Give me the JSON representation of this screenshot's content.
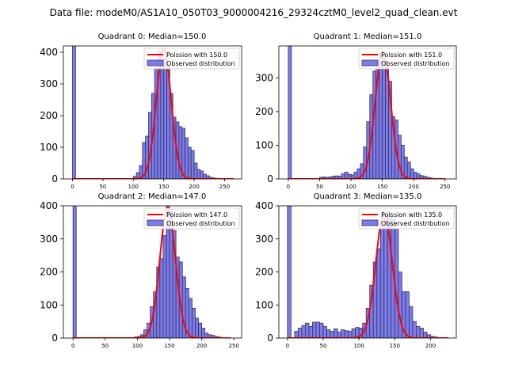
{
  "figure": {
    "suptitle": "Data file: modeM0/AS1A10_050T03_9000004216_29324cztM0_level2_quad_clean.evt"
  },
  "colors": {
    "bar_fill": "#7b7bea",
    "bar_edge": "#33335c",
    "poisson_line": "#ff0000",
    "axis": "#000000"
  },
  "chart_data": [
    {
      "type": "bar",
      "title": "Quadrant 0: Median=150.0",
      "xlim": [
        -15,
        278
      ],
      "ylim": [
        0,
        420
      ],
      "xticks": [
        0,
        50,
        100,
        150,
        200,
        250
      ],
      "yticks": [
        0,
        100,
        200,
        300,
        400
      ],
      "bin_width": 5,
      "bins": [
        [
          0,
          420
        ],
        [
          100,
          8
        ],
        [
          105,
          20
        ],
        [
          110,
          42
        ],
        [
          115,
          115
        ],
        [
          120,
          135
        ],
        [
          125,
          210
        ],
        [
          130,
          270
        ],
        [
          135,
          350
        ],
        [
          140,
          405
        ],
        [
          145,
          375
        ],
        [
          150,
          385
        ],
        [
          155,
          360
        ],
        [
          160,
          270
        ],
        [
          165,
          195
        ],
        [
          170,
          180
        ],
        [
          175,
          165
        ],
        [
          180,
          160
        ],
        [
          185,
          130
        ],
        [
          190,
          100
        ],
        [
          195,
          90
        ],
        [
          200,
          50
        ],
        [
          205,
          30
        ],
        [
          210,
          25
        ],
        [
          215,
          15
        ],
        [
          220,
          10
        ],
        [
          225,
          5
        ],
        [
          230,
          3
        ],
        [
          235,
          2
        ]
      ],
      "poisson": {
        "mean": 150.0,
        "peak": 410,
        "xmin": 0,
        "xmax": 265
      },
      "legend": [
        "Poission with 150.0",
        "Observed distribution"
      ]
    },
    {
      "type": "bar",
      "title": "Quadrant 1: Median=151.0",
      "xlim": [
        -15,
        268
      ],
      "ylim": [
        0,
        395
      ],
      "xticks": [
        0,
        50,
        100,
        150,
        200,
        250
      ],
      "yticks": [
        0,
        100,
        200,
        300
      ],
      "bin_width": 5,
      "bins": [
        [
          0,
          395
        ],
        [
          50,
          5
        ],
        [
          55,
          6
        ],
        [
          60,
          5
        ],
        [
          65,
          6
        ],
        [
          70,
          8
        ],
        [
          75,
          9
        ],
        [
          80,
          8
        ],
        [
          85,
          15
        ],
        [
          90,
          20
        ],
        [
          95,
          14
        ],
        [
          100,
          12
        ],
        [
          105,
          20
        ],
        [
          110,
          30
        ],
        [
          115,
          45
        ],
        [
          120,
          95
        ],
        [
          125,
          170
        ],
        [
          130,
          250
        ],
        [
          135,
          320
        ],
        [
          140,
          330
        ],
        [
          145,
          375
        ],
        [
          150,
          365
        ],
        [
          155,
          335
        ],
        [
          160,
          290
        ],
        [
          165,
          185
        ],
        [
          170,
          175
        ],
        [
          175,
          130
        ],
        [
          180,
          100
        ],
        [
          185,
          65
        ],
        [
          190,
          50
        ],
        [
          195,
          30
        ],
        [
          200,
          20
        ],
        [
          205,
          15
        ],
        [
          210,
          10
        ],
        [
          215,
          8
        ],
        [
          220,
          5
        ],
        [
          225,
          3
        ]
      ],
      "poisson": {
        "mean": 151.0,
        "peak": 380,
        "xmin": 0,
        "xmax": 250
      },
      "legend": [
        "Poission with 151.0",
        "Observed distribution"
      ]
    },
    {
      "type": "bar",
      "title": "Quadrant 2: Median=147.0",
      "xlim": [
        -15,
        262
      ],
      "ylim": [
        0,
        400
      ],
      "xticks": [
        0,
        50,
        100,
        150,
        200,
        250
      ],
      "yticks": [
        0,
        100,
        200,
        300,
        400
      ],
      "bin_width": 5,
      "bins": [
        [
          0,
          400
        ],
        [
          95,
          3
        ],
        [
          100,
          5
        ],
        [
          105,
          10
        ],
        [
          110,
          25
        ],
        [
          115,
          45
        ],
        [
          120,
          95
        ],
        [
          125,
          140
        ],
        [
          130,
          215
        ],
        [
          135,
          240
        ],
        [
          140,
          310
        ],
        [
          145,
          400
        ],
        [
          150,
          390
        ],
        [
          155,
          325
        ],
        [
          160,
          245
        ],
        [
          165,
          230
        ],
        [
          170,
          185
        ],
        [
          175,
          150
        ],
        [
          180,
          120
        ],
        [
          185,
          90
        ],
        [
          190,
          60
        ],
        [
          195,
          45
        ],
        [
          200,
          30
        ],
        [
          205,
          15
        ],
        [
          210,
          10
        ],
        [
          215,
          8
        ],
        [
          220,
          5
        ],
        [
          225,
          3
        ]
      ],
      "poisson": {
        "mean": 147.0,
        "peak": 395,
        "xmin": 0,
        "xmax": 245
      },
      "legend": [
        "Poission with 147.0",
        "Observed distribution"
      ]
    },
    {
      "type": "bar",
      "title": "Quadrant 3: Median=135.0",
      "xlim": [
        -12,
        236
      ],
      "ylim": [
        0,
        400
      ],
      "xticks": [
        0,
        50,
        100,
        150,
        200
      ],
      "yticks": [
        0,
        100,
        200,
        300,
        400
      ],
      "bin_width": 5,
      "bins": [
        [
          0,
          400
        ],
        [
          10,
          20
        ],
        [
          15,
          30
        ],
        [
          20,
          38
        ],
        [
          25,
          45
        ],
        [
          30,
          35
        ],
        [
          35,
          48
        ],
        [
          40,
          48
        ],
        [
          45,
          45
        ],
        [
          50,
          35
        ],
        [
          55,
          25
        ],
        [
          60,
          20
        ],
        [
          65,
          28
        ],
        [
          70,
          18
        ],
        [
          75,
          25
        ],
        [
          80,
          22
        ],
        [
          85,
          20
        ],
        [
          90,
          28
        ],
        [
          95,
          32
        ],
        [
          100,
          30
        ],
        [
          105,
          45
        ],
        [
          110,
          90
        ],
        [
          115,
          160
        ],
        [
          120,
          230
        ],
        [
          125,
          270
        ],
        [
          130,
          340
        ],
        [
          135,
          370
        ],
        [
          140,
          380
        ],
        [
          145,
          360
        ],
        [
          150,
          330
        ],
        [
          155,
          200
        ],
        [
          160,
          140
        ],
        [
          165,
          140
        ],
        [
          170,
          95
        ],
        [
          175,
          50
        ],
        [
          180,
          35
        ],
        [
          185,
          30
        ],
        [
          190,
          18
        ],
        [
          195,
          10
        ],
        [
          200,
          5
        ],
        [
          205,
          3
        ]
      ],
      "poisson": {
        "mean": 135.0,
        "peak": 375,
        "xmin": 0,
        "xmax": 225
      },
      "legend": [
        "Poission with 135.0",
        "Observed distribution"
      ]
    }
  ]
}
